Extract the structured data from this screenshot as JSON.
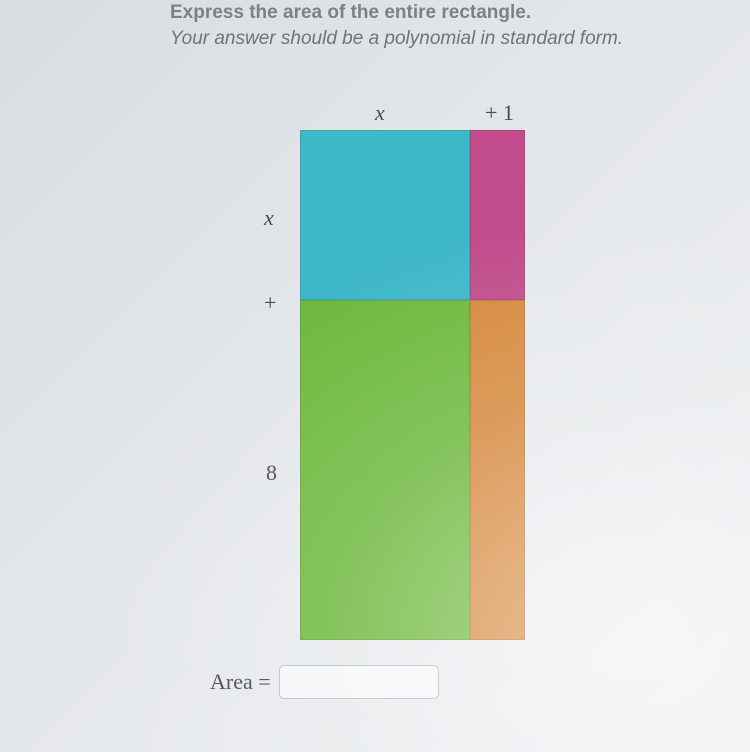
{
  "prompt": {
    "title": "Express the area of the entire rectangle.",
    "subtitle": "Your answer should be a polynomial in standard form."
  },
  "diagram": {
    "top": {
      "col1": "x",
      "col2": "+ 1"
    },
    "left": {
      "row1": "x",
      "plus": "+",
      "row2": "8"
    },
    "dimensions": {
      "col1_width": 170,
      "col2_width": 55,
      "row1_height": 170,
      "row2_height": 340
    },
    "colors": {
      "topleft": "#3fb8c9",
      "topright": "#c14d8c",
      "bottomleft": "#6fb93f",
      "bottomright": "#d68a3f",
      "background": "#e2e6e8",
      "text_prompt": "#7a8288",
      "text_label": "#4a4a4a",
      "input_border": "#b8bfc4"
    }
  },
  "answer": {
    "label": "Area =",
    "value": ""
  }
}
